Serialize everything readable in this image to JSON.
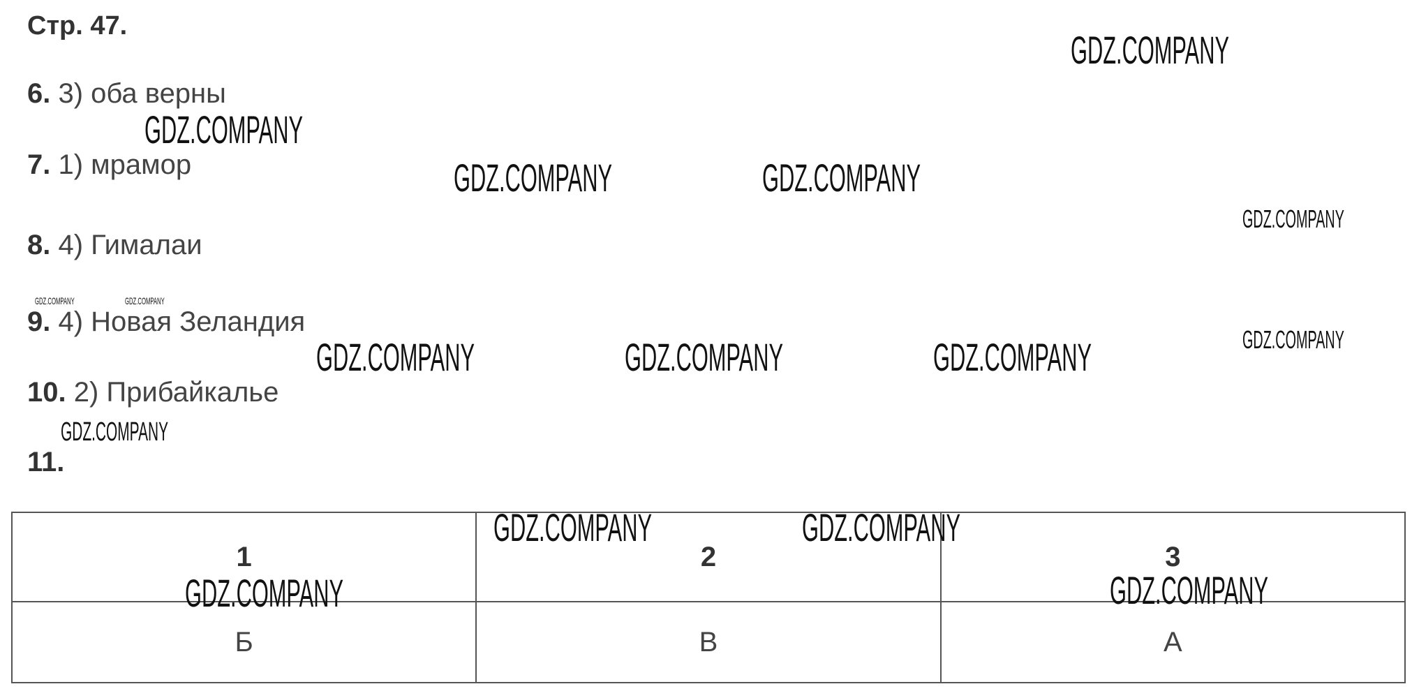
{
  "page_title": "Стр. 47.",
  "answers": [
    {
      "num": "6.",
      "text": "3) оба верны"
    },
    {
      "num": "7.",
      "text": "1) мрамор"
    },
    {
      "num": "8.",
      "text": "4) Гималаи"
    },
    {
      "num": "9.",
      "text": "4) Новая Зеландия"
    },
    {
      "num": "10.",
      "text": "2) Прибайкалье"
    },
    {
      "num": "11.",
      "text": ""
    }
  ],
  "table": {
    "headers": [
      "1",
      "2",
      "3"
    ],
    "values": [
      "Б",
      "В",
      "А"
    ]
  },
  "watermark": "GDZ.COMPANY"
}
